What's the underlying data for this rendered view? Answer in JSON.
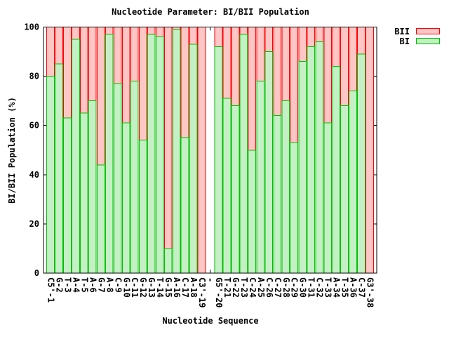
{
  "window": {
    "background": "#ffffff"
  },
  "chart_data": {
    "type": "bar",
    "stacked": true,
    "title": "Nucleotide Parameter: BI/BII Population",
    "xlabel": "Nucleotide Sequence",
    "ylabel": "BI/BII Population (%)",
    "ylim": [
      0,
      100
    ],
    "yticks": [
      0,
      20,
      40,
      60,
      80,
      100
    ],
    "grid": false,
    "legend_position": "top-right-outside",
    "axis_color": "#000000",
    "text_color": "#000000",
    "gap_index": 19,
    "categories": [
      "C5'-1",
      "G-2",
      "T-3",
      "A-4",
      "T-5",
      "A-6",
      "G-7",
      "A-8",
      "C-9",
      "G-10",
      "C-11",
      "G-12",
      "G-13",
      "T-14",
      "G-15",
      "A-16",
      "C-17",
      "A-18",
      "C3'-19",
      "-",
      "G5'-20",
      "T-21",
      "G-22",
      "T-23",
      "C-24",
      "A-25",
      "C-26",
      "C-27",
      "G-28",
      "C-29",
      "G-30",
      "T-31",
      "C-32",
      "T-33",
      "A-34",
      "T-35",
      "A-36",
      "C-37",
      "G3'-38"
    ],
    "series": [
      {
        "name": "BII",
        "fill": "#ffc6c6",
        "stroke": "#ff0000",
        "values": [
          20,
          15,
          37,
          5,
          35,
          30,
          56,
          3,
          23,
          39,
          22,
          46,
          3,
          4,
          90,
          1,
          45,
          7,
          100,
          null,
          8,
          29,
          32,
          3,
          50,
          22,
          10,
          36,
          30,
          47,
          14,
          8,
          6,
          39,
          16,
          32,
          26,
          11,
          100
        ]
      },
      {
        "name": "BI",
        "fill": "#c5efc5",
        "stroke": "#00c000",
        "values": [
          80,
          85,
          63,
          95,
          65,
          70,
          44,
          97,
          77,
          61,
          78,
          54,
          97,
          96,
          10,
          99,
          55,
          93,
          0,
          null,
          92,
          71,
          68,
          97,
          50,
          78,
          90,
          64,
          70,
          53,
          86,
          92,
          94,
          61,
          84,
          68,
          74,
          89,
          0
        ]
      }
    ]
  }
}
